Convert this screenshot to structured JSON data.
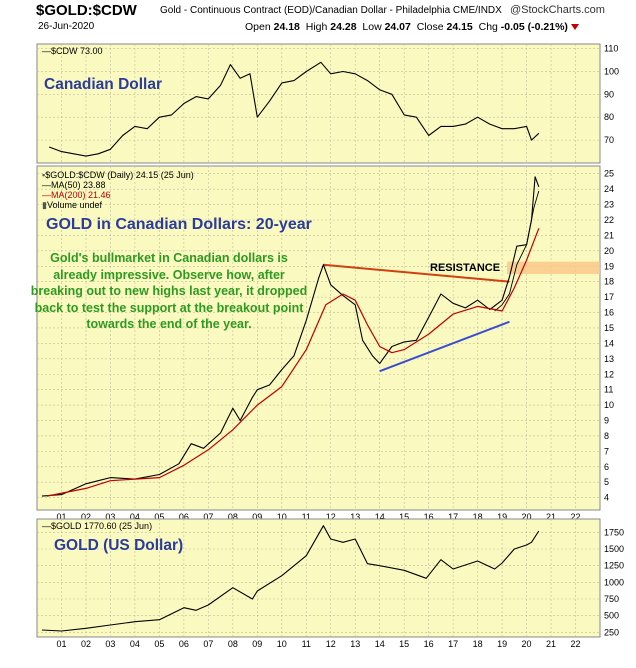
{
  "header": {
    "symbol": "$GOLD:$CDW",
    "description": "Gold - Continuous Contract (EOD)/Canadian Dollar - Philadelphia  CME/INDX",
    "logo": "@StockCharts.com",
    "date": "26-Jun-2020",
    "open_label": "Open",
    "open": "24.18",
    "high_label": "High",
    "high": "24.28",
    "low_label": "Low",
    "low": "24.07",
    "close_label": "Close",
    "close": "24.15",
    "chg_label": "Chg",
    "chg": "-0.05 (-0.21%)"
  },
  "panels": {
    "cad": {
      "legend": "$CDW 73.00",
      "title": "Canadian Dollar"
    },
    "gold_cad": {
      "legend_main": "$GOLD:$CDW (Daily) 24.15 (25 Jun)",
      "legend_ma50": "MA(50) 23.88",
      "legend_ma200": "MA(200) 21.46",
      "legend_vol": "Volume undef",
      "title": "GOLD in Canadian Dollars: 20-year",
      "note": "Gold's bullmarket in Canadian dollars is already impressive. Observe how, after breaking out to new highs last year, it dropped back to test the support at the breakout point towards the end of the year.",
      "resistance_label": "RESISTANCE"
    },
    "gold_usd": {
      "legend": "$GOLD 1770.60 (25 Jun)",
      "title": "GOLD (US Dollar)"
    }
  },
  "colors": {
    "panel_bg": "#fafac0",
    "price_line": "#000000",
    "ma200": "#c00000",
    "resistance_line": "#d04010",
    "resistance_zone": "#f9c98a",
    "support_line": "#3a4ed0",
    "title_blue": "#2b3b9e",
    "note_green": "#2f9a20"
  },
  "chart_data": [
    {
      "type": "line",
      "title": "Canadian Dollar",
      "series": [
        {
          "name": "$CDW",
          "x": [
            2000.5,
            2001.0,
            2001.5,
            2002.0,
            2002.5,
            2003.0,
            2003.5,
            2004.0,
            2004.5,
            2005.0,
            2005.5,
            2006.0,
            2006.5,
            2007.0,
            2007.5,
            2007.9,
            2008.3,
            2008.7,
            2009.0,
            2009.5,
            2010.0,
            2010.5,
            2011.0,
            2011.6,
            2012.0,
            2012.5,
            2013.0,
            2013.5,
            2014.0,
            2014.5,
            2015.0,
            2015.5,
            2016.0,
            2016.5,
            2017.0,
            2017.5,
            2018.0,
            2018.5,
            2019.0,
            2019.5,
            2020.0,
            2020.2,
            2020.5
          ],
          "values": [
            67,
            65,
            64,
            63,
            64,
            66,
            72,
            76,
            75,
            80,
            81,
            86,
            89,
            88,
            94,
            103,
            97,
            99,
            80,
            87,
            95,
            96,
            100,
            104,
            99,
            100,
            99,
            96,
            92,
            90,
            81,
            80,
            72,
            76,
            76,
            77,
            80,
            77,
            75,
            75,
            76,
            70,
            73
          ]
        }
      ],
      "ylim": [
        60,
        112
      ],
      "ytick_labels": [
        "70",
        "80",
        "90",
        "100",
        "110"
      ]
    },
    {
      "type": "line",
      "title": "GOLD in Canadian Dollars: 20-year",
      "series": [
        {
          "name": "$GOLD:$CDW (Daily)",
          "x": [
            2000.2,
            2001.0,
            2002.0,
            2002.5,
            2003.0,
            2004.0,
            2005.0,
            2005.8,
            2006.3,
            2006.8,
            2007.5,
            2008.0,
            2008.3,
            2008.8,
            2009.0,
            2009.5,
            2010.0,
            2010.5,
            2011.0,
            2011.5,
            2011.7,
            2012.0,
            2012.5,
            2013.0,
            2013.3,
            2013.7,
            2014.0,
            2014.5,
            2015.0,
            2015.5,
            2016.0,
            2016.5,
            2017.0,
            2017.5,
            2018.0,
            2018.5,
            2019.0,
            2019.3,
            2019.6,
            2020.0,
            2020.2,
            2020.35,
            2020.5
          ],
          "values": [
            4.1,
            4.2,
            4.9,
            5.1,
            5.3,
            5.2,
            5.5,
            6.2,
            7.5,
            7.2,
            8.2,
            9.8,
            9.0,
            10.5,
            11.0,
            11.3,
            12.3,
            13.2,
            15.5,
            18.2,
            19.1,
            17.8,
            17.1,
            16.5,
            14.2,
            13.2,
            12.7,
            13.8,
            14.1,
            14.2,
            15.7,
            17.2,
            16.6,
            16.3,
            16.8,
            16.2,
            16.8,
            18.3,
            20.3,
            20.4,
            22.0,
            24.8,
            24.15
          ]
        },
        {
          "name": "MA(50)",
          "x": [
            2018.7,
            2019.0,
            2019.3,
            2019.6,
            2020.0,
            2020.3,
            2020.5
          ],
          "values": [
            16.1,
            16.5,
            17.2,
            19.1,
            20.4,
            22.8,
            23.88
          ]
        },
        {
          "name": "MA(200)",
          "x": [
            2000.4,
            2002.0,
            2003.0,
            2004.0,
            2005.0,
            2006.0,
            2007.0,
            2008.0,
            2009.0,
            2010.0,
            2011.0,
            2011.8,
            2012.5,
            2013.0,
            2013.5,
            2014.0,
            2014.5,
            2015.0,
            2016.0,
            2017.0,
            2018.0,
            2019.0,
            2019.5,
            2020.0,
            2020.5
          ],
          "values": [
            4.1,
            4.6,
            5.1,
            5.2,
            5.3,
            6.1,
            7.1,
            8.4,
            10.0,
            11.2,
            13.6,
            16.5,
            17.2,
            16.8,
            15.2,
            13.8,
            13.4,
            13.6,
            14.6,
            15.9,
            16.4,
            16.1,
            17.6,
            19.4,
            21.46
          ]
        }
      ],
      "ylim": [
        3.2,
        25.5
      ],
      "ytick_labels": [
        "4",
        "5",
        "6",
        "7",
        "8",
        "9",
        "10",
        "11",
        "12",
        "13",
        "14",
        "15",
        "16",
        "17",
        "18",
        "19",
        "20",
        "21",
        "22",
        "23",
        "24",
        "25"
      ],
      "annotations": {
        "resistance_line": {
          "x": [
            2011.7,
            2019.3
          ],
          "values": [
            19.1,
            18.0
          ]
        },
        "support_line": {
          "x": [
            2014.0,
            2019.3
          ],
          "values": [
            12.2,
            15.4
          ]
        },
        "resistance_zone": {
          "x_from": 2019.2,
          "values": [
            18.5,
            19.3
          ]
        }
      }
    },
    {
      "type": "line",
      "title": "GOLD (US Dollar)",
      "series": [
        {
          "name": "$GOLD",
          "x": [
            2000.2,
            2001.0,
            2002.0,
            2003.0,
            2004.0,
            2005.0,
            2006.0,
            2006.5,
            2007.0,
            2008.0,
            2008.8,
            2009.0,
            2010.0,
            2011.0,
            2011.7,
            2012.0,
            2012.5,
            2013.0,
            2013.5,
            2014.0,
            2015.0,
            2015.9,
            2016.5,
            2017.0,
            2018.0,
            2018.7,
            2019.0,
            2019.5,
            2020.0,
            2020.2,
            2020.5
          ],
          "values": [
            285,
            270,
            310,
            360,
            410,
            440,
            620,
            580,
            660,
            920,
            750,
            870,
            1100,
            1400,
            1850,
            1650,
            1600,
            1650,
            1280,
            1250,
            1180,
            1060,
            1340,
            1200,
            1320,
            1200,
            1290,
            1500,
            1560,
            1600,
            1770
          ]
        }
      ],
      "ylim": [
        180,
        1950
      ],
      "ytick_labels": [
        "250",
        "500",
        "750",
        "1000",
        "1250",
        "1500",
        "1750"
      ]
    }
  ],
  "x_axis_labels": [
    "01",
    "02",
    "03",
    "04",
    "05",
    "06",
    "07",
    "08",
    "09",
    "10",
    "11",
    "12",
    "13",
    "14",
    "15",
    "16",
    "17",
    "18",
    "19",
    "20",
    "21",
    "22"
  ]
}
